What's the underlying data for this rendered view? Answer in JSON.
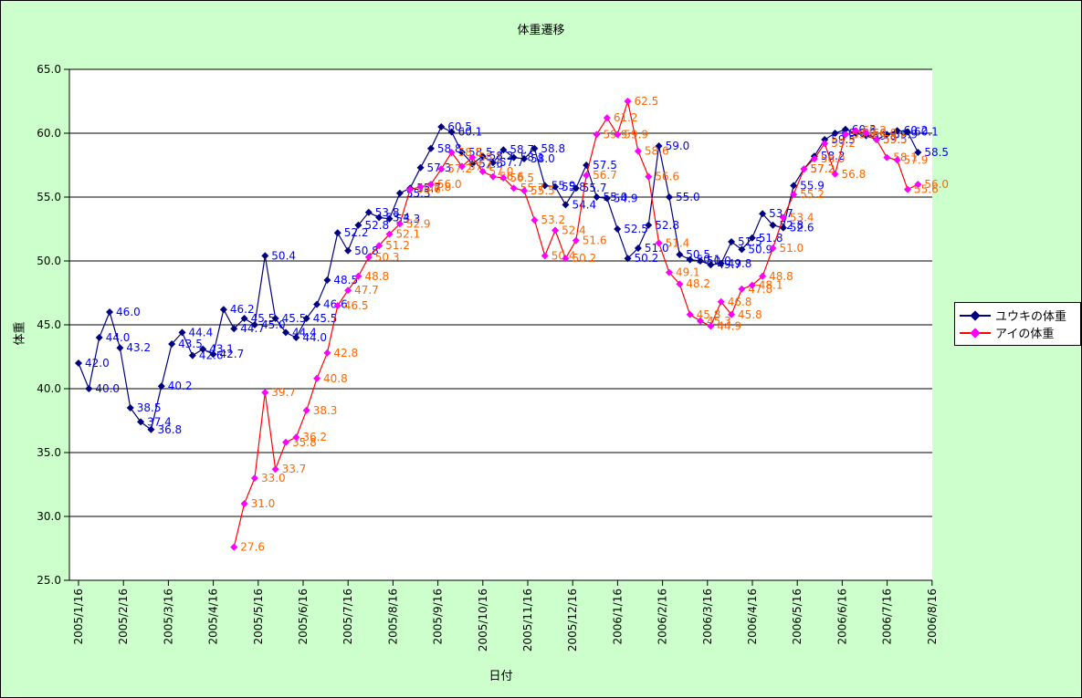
{
  "window": {
    "background_color": "#ccffcc"
  },
  "chart_data": {
    "type": "line",
    "title": "体重遷移",
    "xlabel": "日付",
    "ylabel": "体重",
    "ylim": [
      25.0,
      65.0
    ],
    "ytick_step": 5.0,
    "grid": "horizontal-black",
    "plot_background": "#ffffff",
    "legend_position": "right",
    "point_labels_visible": true,
    "ytick_labels": [
      "65.0",
      "60.0",
      "55.0",
      "50.0",
      "45.0",
      "40.0",
      "35.0",
      "30.0",
      "25.0"
    ],
    "xtick_labels": [
      "2005/1/16",
      "2005/2/16",
      "2005/3/16",
      "2005/4/16",
      "2005/5/16",
      "2005/6/16",
      "2005/7/16",
      "2005/8/16",
      "2005/9/16",
      "2005/10/16",
      "2005/11/16",
      "2005/12/16",
      "2006/1/16",
      "2006/2/16",
      "2006/3/16",
      "2006/4/16",
      "2006/5/16",
      "2006/6/16",
      "2006/7/16",
      "2006/8/16"
    ],
    "series": [
      {
        "name": "ユウキの体重",
        "line_color": "#000080",
        "marker": "diamond",
        "marker_color": "#000080",
        "label_color": "#0000FF",
        "start_index": 0,
        "values": [
          42.0,
          40.0,
          44.0,
          46.0,
          43.2,
          38.5,
          37.4,
          36.8,
          40.2,
          43.5,
          44.4,
          42.6,
          43.1,
          42.7,
          46.2,
          44.7,
          45.5,
          45.0,
          50.4,
          45.5,
          44.4,
          44.0,
          45.5,
          46.6,
          48.5,
          52.2,
          50.8,
          52.8,
          53.8,
          53.4,
          53.3,
          55.3,
          55.7,
          57.3,
          58.8,
          60.5,
          60.1,
          58.5,
          57.6,
          58.2,
          57.7,
          58.7,
          58.1,
          58.0,
          58.8,
          55.9,
          55.8,
          54.4,
          55.7,
          57.5,
          55.0,
          54.9,
          52.5,
          50.2,
          51.0,
          52.8,
          59.0,
          55.0,
          50.5,
          50.1,
          50.0,
          49.7,
          49.8,
          51.5,
          50.9,
          51.8,
          53.7,
          52.8,
          52.6,
          55.9,
          57.2,
          58.2,
          59.5,
          60.0,
          60.3,
          60.0,
          59.8,
          59.5,
          59.9,
          60.2,
          60.1,
          58.5
        ]
      },
      {
        "name": "アイの体重",
        "line_color": "#FF0000",
        "marker": "diamond",
        "marker_color": "#FF00FF",
        "label_color": "#FF6600",
        "start_index": 15,
        "values": [
          27.6,
          31.0,
          33.0,
          39.7,
          33.7,
          35.8,
          36.2,
          38.3,
          40.8,
          42.8,
          46.5,
          47.7,
          48.8,
          50.3,
          51.2,
          52.1,
          52.9,
          55.6,
          55.8,
          56.0,
          57.2,
          58.5,
          57.4,
          58.1,
          57.0,
          56.6,
          56.5,
          55.7,
          55.5,
          53.2,
          50.4,
          52.4,
          50.2,
          51.6,
          56.7,
          59.9,
          61.2,
          59.9,
          62.5,
          58.6,
          56.6,
          51.4,
          49.1,
          48.2,
          45.8,
          45.3,
          44.9,
          46.8,
          45.8,
          47.8,
          48.1,
          48.8,
          51.0,
          53.4,
          55.2,
          57.2,
          58.0,
          59.2,
          56.8,
          59.9,
          60.2,
          60.0,
          59.5,
          58.1,
          57.9,
          55.6,
          56.0
        ]
      }
    ]
  },
  "legend": {
    "items": [
      {
        "label": "ユウキの体重"
      },
      {
        "label": "アイの体重"
      }
    ]
  }
}
